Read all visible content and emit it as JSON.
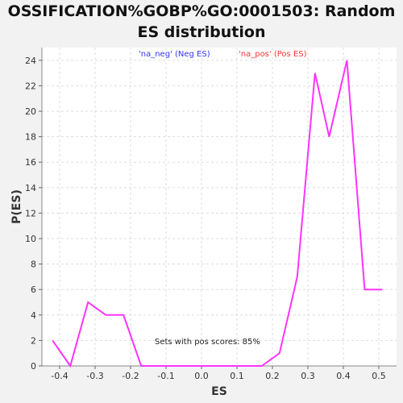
{
  "chart_data": {
    "type": "line",
    "title": [
      "OSSIFICATION%GOBP%GO:0001503: Random",
      "ES distribution"
    ],
    "xlabel": "ES",
    "ylabel": "P(ES)",
    "xlim": [
      -0.45,
      0.55
    ],
    "ylim": [
      0,
      25
    ],
    "x_ticks": [
      "-0.4",
      "-0.3",
      "-0.2",
      "-0.1",
      "0.0",
      "0.1",
      "0.2",
      "0.3",
      "0.4",
      "0.5"
    ],
    "x_tick_values": [
      -0.4,
      -0.3,
      -0.2,
      -0.1,
      0.0,
      0.1,
      0.2,
      0.3,
      0.4,
      0.5
    ],
    "y_ticks": [
      "0",
      "2",
      "4",
      "6",
      "8",
      "10",
      "12",
      "14",
      "16",
      "18",
      "20",
      "22",
      "24"
    ],
    "y_tick_values": [
      0,
      2,
      4,
      6,
      8,
      10,
      12,
      14,
      16,
      18,
      20,
      22,
      24
    ],
    "grid": true,
    "legend": [
      {
        "label": "'na_neg' (Neg ES)",
        "color": "#3333ff"
      },
      {
        "label": "'na_pos' (Pos ES)",
        "color": "#ff3333"
      }
    ],
    "annotation": "Sets with pos scores: 85%",
    "series": [
      {
        "color": "#ff33ff",
        "x": [
          -0.42,
          -0.37,
          -0.32,
          -0.27,
          -0.22,
          -0.17,
          -0.12,
          -0.07,
          -0.02,
          0.03,
          0.08,
          0.13,
          0.17,
          0.22,
          0.27,
          0.32,
          0.36,
          0.41,
          0.46,
          0.51
        ],
        "y": [
          2,
          0,
          5,
          4,
          4,
          0,
          0,
          0,
          0,
          0,
          0,
          0,
          0,
          1,
          7,
          23,
          18,
          24,
          6,
          6
        ]
      }
    ]
  }
}
